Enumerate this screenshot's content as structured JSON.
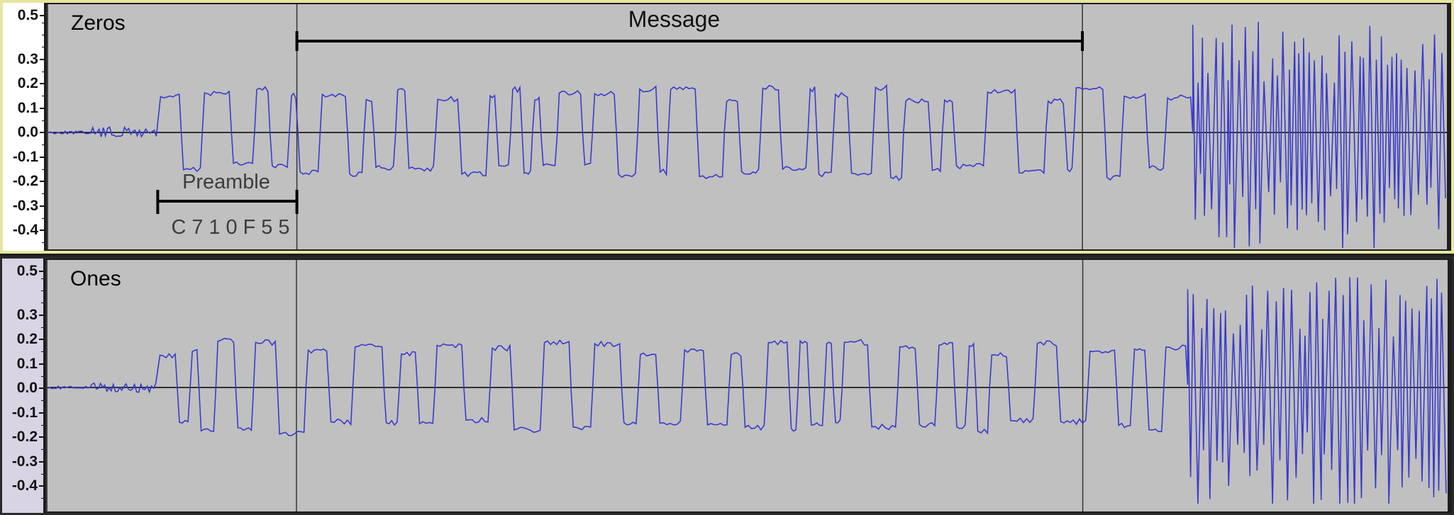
{
  "tracks": [
    {
      "name": "Zeros",
      "ruler": [
        "0.5",
        "0.3",
        "0.2",
        "0.1",
        "0.0",
        "-0.1",
        "-0.2",
        "-0.3",
        "-0.4"
      ],
      "annotations": {
        "message_label": "Message",
        "preamble_label": "Preamble",
        "preamble_hex": "C 7 1 0 F 5 5"
      }
    },
    {
      "name": "Ones",
      "ruler": [
        "0.5",
        "0.3",
        "0.2",
        "0.1",
        "0.0",
        "-0.1",
        "-0.2",
        "-0.3",
        "-0.4"
      ]
    }
  ],
  "colors": {
    "waveform": "#3a3acc",
    "track_background": "#c0c0c0",
    "selected_border": "#e6e6a0"
  }
}
